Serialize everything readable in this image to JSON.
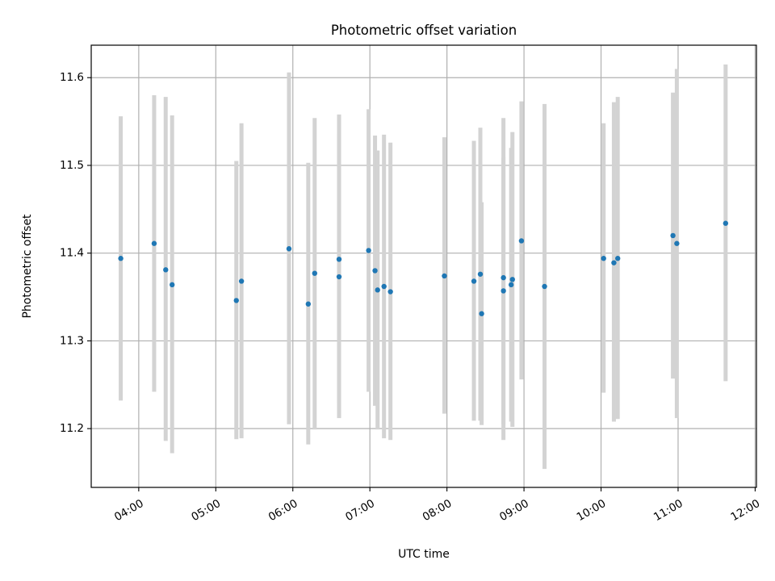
{
  "chart_data": {
    "type": "scatter",
    "title": "Photometric offset variation",
    "xlabel": "UTC time",
    "ylabel": "Photometric offset",
    "x_ticks": [
      "04:00",
      "05:00",
      "06:00",
      "07:00",
      "08:00",
      "09:00",
      "10:00",
      "11:00",
      "12:00"
    ],
    "y_ticks": [
      "11.2",
      "11.3",
      "11.4",
      "11.5",
      "11.6"
    ],
    "xlim": [
      "03:23",
      "12:01"
    ],
    "ylim": [
      11.133,
      11.637
    ],
    "grid": true,
    "colors": {
      "point": "#1f77b4",
      "error_bar": "#d3d3d3"
    },
    "points": [
      {
        "x": "03:46",
        "y": 11.394,
        "y_low": 11.232,
        "y_high": 11.556
      },
      {
        "x": "04:12",
        "y": 11.411,
        "y_low": 11.242,
        "y_high": 11.58
      },
      {
        "x": "04:21",
        "y": 11.381,
        "y_low": 11.186,
        "y_high": 11.578
      },
      {
        "x": "04:26",
        "y": 11.364,
        "y_low": 11.172,
        "y_high": 11.557
      },
      {
        "x": "05:16",
        "y": 11.346,
        "y_low": 11.188,
        "y_high": 11.505
      },
      {
        "x": "05:20",
        "y": 11.368,
        "y_low": 11.189,
        "y_high": 11.548
      },
      {
        "x": "05:57",
        "y": 11.405,
        "y_low": 11.205,
        "y_high": 11.606
      },
      {
        "x": "06:12",
        "y": 11.342,
        "y_low": 11.182,
        "y_high": 11.503
      },
      {
        "x": "06:17",
        "y": 11.377,
        "y_low": 11.199,
        "y_high": 11.554
      },
      {
        "x": "06:36",
        "y": 11.393,
        "y_low": 11.228,
        "y_high": 11.558
      },
      {
        "x": "06:36",
        "y": 11.373,
        "y_low": 11.212,
        "y_high": 11.536
      },
      {
        "x": "06:59",
        "y": 11.403,
        "y_low": 11.242,
        "y_high": 11.564
      },
      {
        "x": "07:04",
        "y": 11.38,
        "y_low": 11.226,
        "y_high": 11.534
      },
      {
        "x": "07:06",
        "y": 11.358,
        "y_low": 11.199,
        "y_high": 11.517
      },
      {
        "x": "07:11",
        "y": 11.362,
        "y_low": 11.189,
        "y_high": 11.535
      },
      {
        "x": "07:16",
        "y": 11.356,
        "y_low": 11.187,
        "y_high": 11.526
      },
      {
        "x": "07:58",
        "y": 11.374,
        "y_low": 11.217,
        "y_high": 11.532
      },
      {
        "x": "08:21",
        "y": 11.368,
        "y_low": 11.209,
        "y_high": 11.528
      },
      {
        "x": "08:26",
        "y": 11.376,
        "y_low": 11.209,
        "y_high": 11.543
      },
      {
        "x": "08:27",
        "y": 11.331,
        "y_low": 11.204,
        "y_high": 11.458
      },
      {
        "x": "08:44",
        "y": 11.372,
        "y_low": 11.187,
        "y_high": 11.554
      },
      {
        "x": "08:44",
        "y": 11.357,
        "y_low": 11.205,
        "y_high": 11.509
      },
      {
        "x": "08:50",
        "y": 11.364,
        "y_low": 11.208,
        "y_high": 11.52
      },
      {
        "x": "08:51",
        "y": 11.37,
        "y_low": 11.202,
        "y_high": 11.538
      },
      {
        "x": "08:58",
        "y": 11.414,
        "y_low": 11.256,
        "y_high": 11.573
      },
      {
        "x": "09:16",
        "y": 11.362,
        "y_low": 11.154,
        "y_high": 11.57
      },
      {
        "x": "10:02",
        "y": 11.394,
        "y_low": 11.241,
        "y_high": 11.548
      },
      {
        "x": "10:10",
        "y": 11.389,
        "y_low": 11.208,
        "y_high": 11.572
      },
      {
        "x": "10:13",
        "y": 11.394,
        "y_low": 11.211,
        "y_high": 11.578
      },
      {
        "x": "10:56",
        "y": 11.42,
        "y_low": 11.257,
        "y_high": 11.583
      },
      {
        "x": "10:59",
        "y": 11.411,
        "y_low": 11.212,
        "y_high": 11.61
      },
      {
        "x": "11:37",
        "y": 11.434,
        "y_low": 11.254,
        "y_high": 11.615
      }
    ]
  }
}
